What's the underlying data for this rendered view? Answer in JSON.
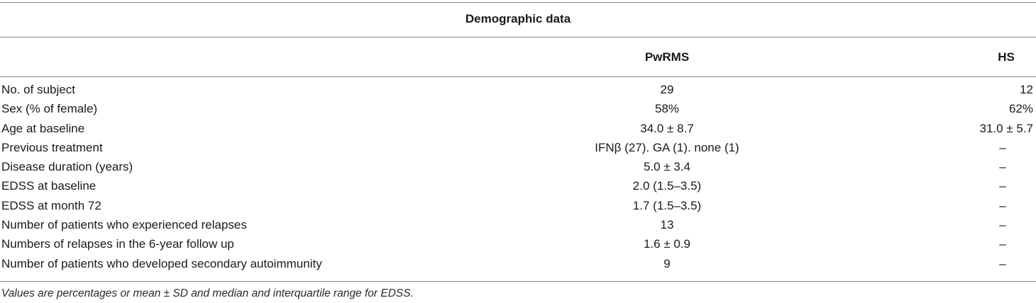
{
  "table": {
    "title": "Demographic data",
    "columns": [
      "PwRMS",
      "HS"
    ],
    "rows": [
      {
        "label": "No. of subject",
        "pwrms": "29",
        "hs": "12"
      },
      {
        "label": "Sex (% of female)",
        "pwrms": "58%",
        "hs": "62%"
      },
      {
        "label": "Age at baseline",
        "pwrms": "34.0 ± 8.7",
        "hs": "31.0 ± 5.7"
      },
      {
        "label": "Previous treatment",
        "pwrms": "IFNβ (27). GA (1). none (1)",
        "hs": "–"
      },
      {
        "label": "Disease duration (years)",
        "pwrms": "5.0 ± 3.4",
        "hs": "–"
      },
      {
        "label": "EDSS at baseline",
        "pwrms": "2.0 (1.5–3.5)",
        "hs": "–"
      },
      {
        "label": "EDSS at month 72",
        "pwrms": "1.7 (1.5–3.5)",
        "hs": "–"
      },
      {
        "label": "Number of patients who experienced relapses",
        "pwrms": "13",
        "hs": "–"
      },
      {
        "label": "Numbers of relapses in the 6-year follow up",
        "pwrms": "1.6 ± 0.9",
        "hs": "–"
      },
      {
        "label": "Number of patients who developed secondary autoimmunity",
        "pwrms": "9",
        "hs": "–"
      }
    ],
    "footnote": "Values are percentages or mean ± SD and median and interquartile range for EDSS."
  }
}
